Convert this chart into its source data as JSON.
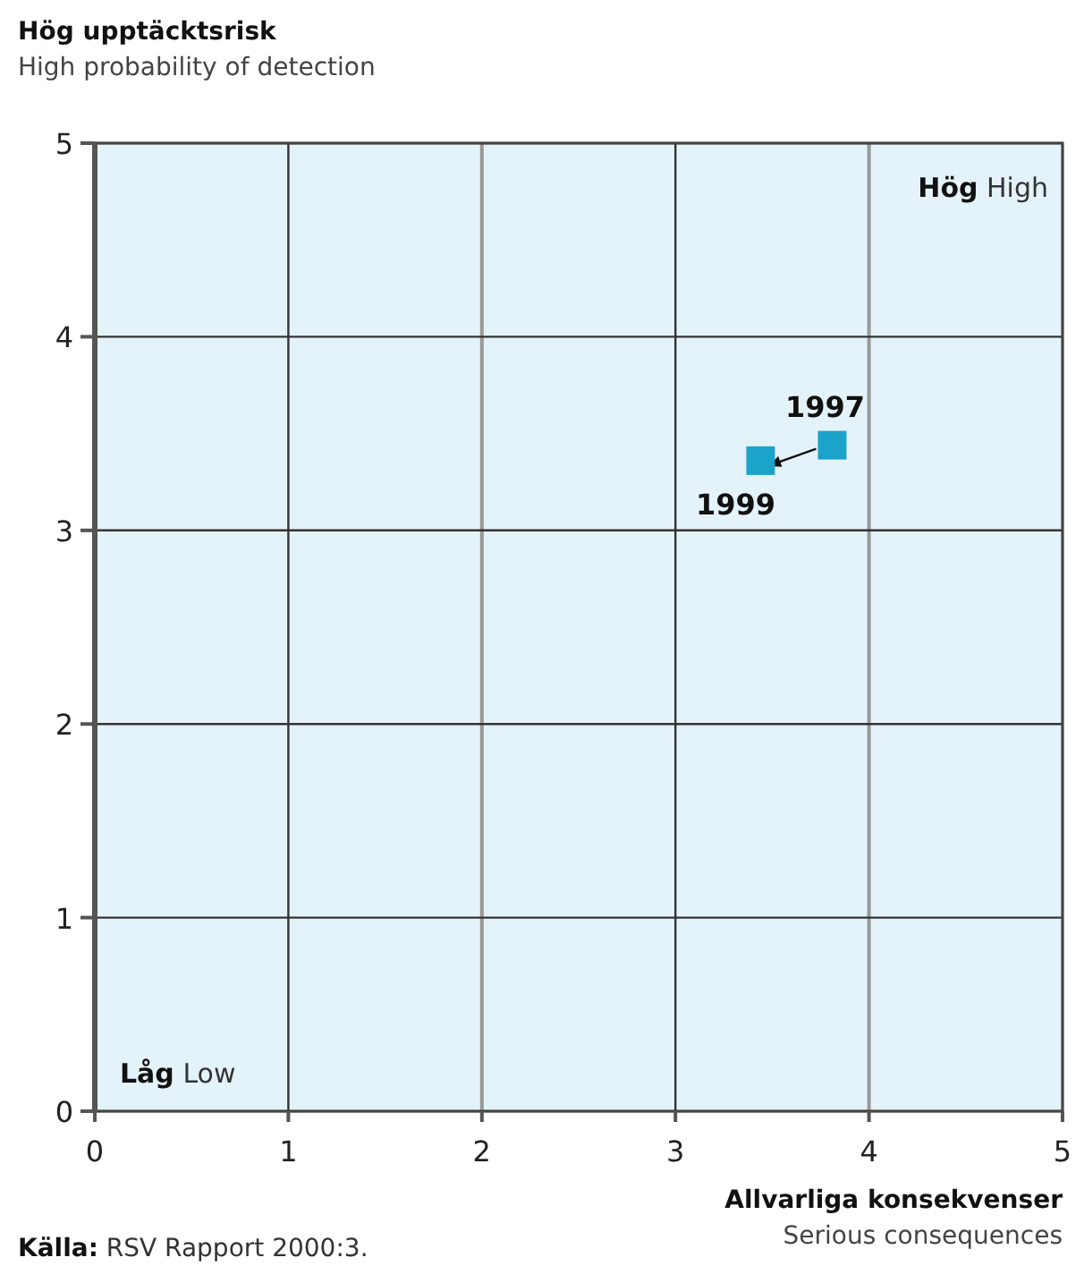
{
  "chart_data": {
    "type": "scatter",
    "ylabel": "Hög upptäcktsrisk\nHigh probability of detection",
    "xlabel": "Allvarliga konsekvenser\nSerious consequences",
    "series": [
      {
        "name": "1997",
        "color": "#1ba3c9",
        "x": [
          3.81
        ],
        "values": [
          3.44
        ]
      },
      {
        "name": "1999",
        "color": "#1ba3c9",
        "x": [
          3.44
        ],
        "values": [
          3.36
        ]
      }
    ],
    "marker": "square",
    "xlim": [
      0,
      5
    ],
    "ylim": [
      0,
      5
    ],
    "xticks": [
      0,
      1,
      2,
      3,
      4,
      5
    ],
    "yticks": [
      0,
      1,
      2,
      3,
      4,
      5
    ],
    "grid": true,
    "annotations": [
      "Hög High",
      "Låg Low",
      "Källa: RSV Rapport 2000:3."
    ]
  }
}
